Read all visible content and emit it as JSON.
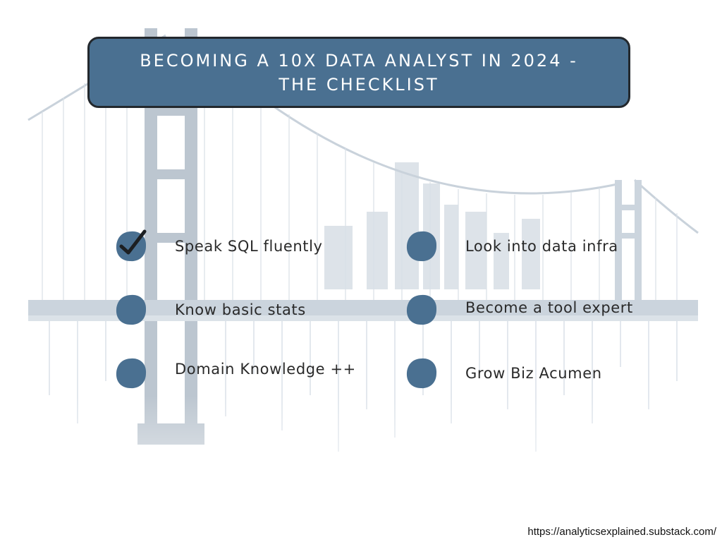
{
  "title": "Becoming a 10X Data Analyst in 2024 - the checklist",
  "colors": {
    "accent": "#4a7091",
    "border": "#23282d",
    "text": "#2a2a2a",
    "background": "#ffffff"
  },
  "checklist": {
    "left": [
      {
        "label": "Speak SQL fluently",
        "checked": true,
        "icon": "checkmark-icon"
      },
      {
        "label": "Know basic stats",
        "checked": false
      },
      {
        "label": "Domain Knowledge ++",
        "checked": false
      }
    ],
    "right": [
      {
        "label": "Look into data infra",
        "checked": false
      },
      {
        "label": "Become a tool expert",
        "checked": false
      },
      {
        "label": "Grow Biz Acumen",
        "checked": false
      }
    ]
  },
  "footer": {
    "url": "https://analyticsexplained.substack.com/"
  }
}
